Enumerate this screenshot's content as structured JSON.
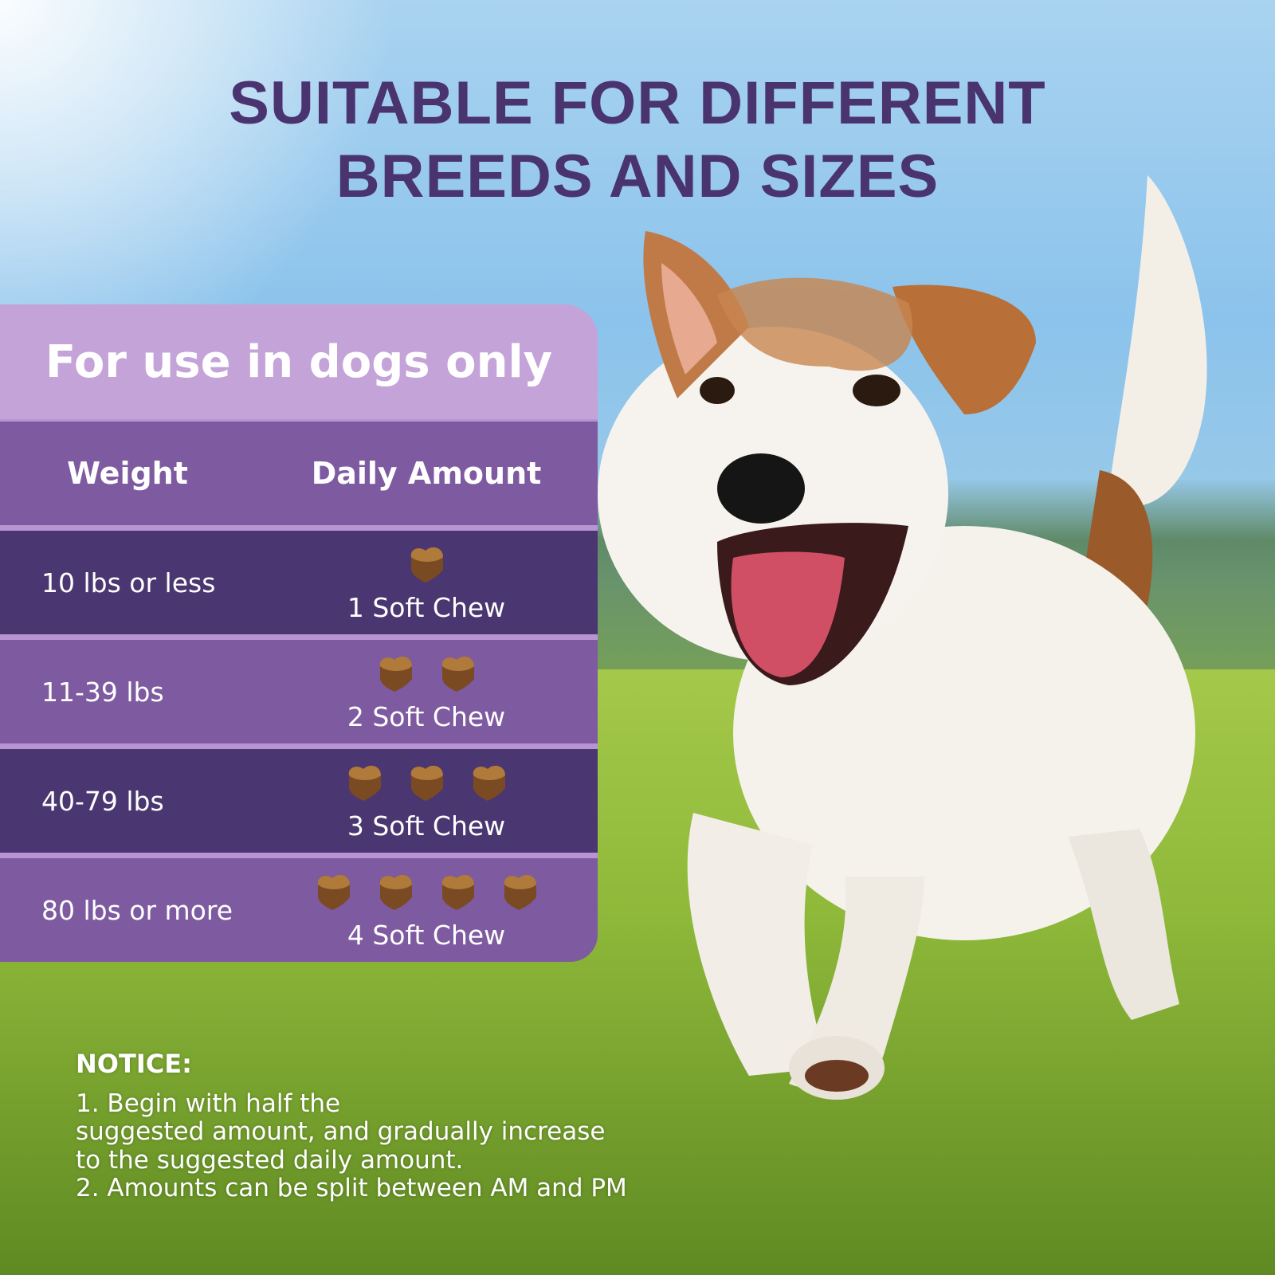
{
  "headline": {
    "line1": "SUITABLE FOR DIFFERENT",
    "line2": "BREEDS AND SIZES"
  },
  "table": {
    "banner": "For use in dogs only",
    "columns": [
      "Weight",
      "Daily Amount"
    ],
    "rows": [
      {
        "weight": "10 lbs or less",
        "chews": 1,
        "amount": "1 Soft Chew"
      },
      {
        "weight": "11-39 lbs",
        "chews": 2,
        "amount": "2 Soft Chew"
      },
      {
        "weight": "40-79 lbs",
        "chews": 3,
        "amount": "3 Soft Chew"
      },
      {
        "weight": "80 lbs or more",
        "chews": 4,
        "amount": "4 Soft Chew"
      }
    ]
  },
  "notice": {
    "title": "NOTICE:",
    "lines": [
      "1. Begin with half the",
      "suggested amount, and gradually increase",
      "to the suggested daily amount.",
      "2. Amounts can be split between AM and PM"
    ]
  },
  "colors": {
    "title": "#4a3470",
    "banner": "#c4a3d8",
    "row_dark": "#4a3670",
    "row_mid": "#7e5aa0",
    "chew": "#7a4a22"
  },
  "icons": [
    "soft-chew-heart-icon"
  ]
}
